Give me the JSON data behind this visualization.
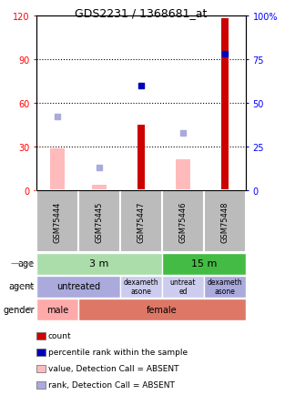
{
  "title": "GDS2231 / 1368681_at",
  "samples": [
    "GSM75444",
    "GSM75445",
    "GSM75447",
    "GSM75446",
    "GSM75448"
  ],
  "count_values": [
    0,
    0,
    45,
    0,
    118
  ],
  "percentile_rank_values": [
    null,
    null,
    60,
    null,
    78
  ],
  "value_absent": [
    29,
    4,
    null,
    21,
    null
  ],
  "rank_absent": [
    42,
    13,
    null,
    33,
    null
  ],
  "ylim_left": [
    0,
    120
  ],
  "ylim_right": [
    0,
    100
  ],
  "yticks_left": [
    0,
    30,
    60,
    90,
    120
  ],
  "ytick_labels_left": [
    "0",
    "30",
    "60",
    "90",
    "120"
  ],
  "yticks_right": [
    0,
    25,
    50,
    75,
    100
  ],
  "ytick_labels_right": [
    "0",
    "25",
    "50",
    "75",
    "100%"
  ],
  "color_count": "#cc0000",
  "color_percentile": "#0000bb",
  "color_value_absent": "#ffbbbb",
  "color_rank_absent": "#aaaadd",
  "color_sample_bg": "#bbbbbb",
  "age_3m_color": "#aaddaa",
  "age_15m_color": "#44bb44",
  "agent_untreated_color": "#aaaadd",
  "agent_dexa_color": "#ccccee",
  "gender_male_color": "#ffaaaa",
  "gender_female_color": "#dd7766",
  "legend_items": [
    {
      "color": "#cc0000",
      "label": "count"
    },
    {
      "color": "#0000bb",
      "label": "percentile rank within the sample"
    },
    {
      "color": "#ffbbbb",
      "label": "value, Detection Call = ABSENT"
    },
    {
      "color": "#aaaadd",
      "label": "rank, Detection Call = ABSENT"
    }
  ]
}
